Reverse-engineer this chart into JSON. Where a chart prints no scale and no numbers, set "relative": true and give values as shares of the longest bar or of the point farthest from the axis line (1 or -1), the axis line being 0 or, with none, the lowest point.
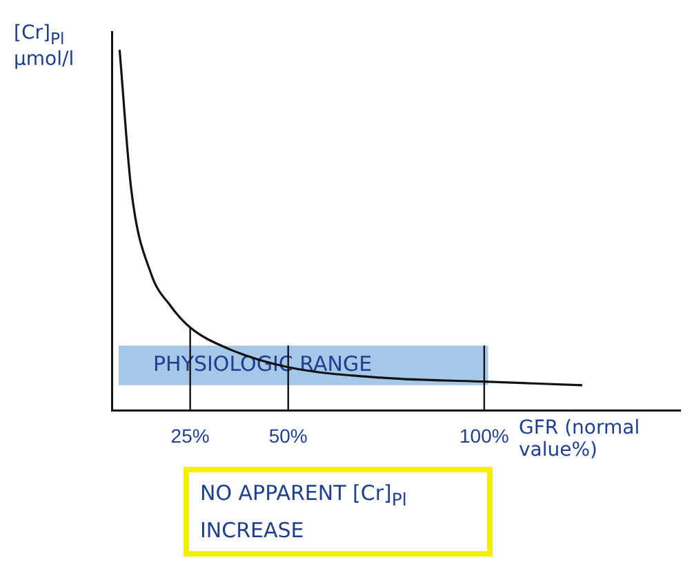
{
  "chart_data": {
    "type": "line",
    "relative": true,
    "xlabel": "GFR (normal value%)",
    "ylabel": "[Cr]$_{Pl}$ µmol/l",
    "x": [
      7,
      10,
      15,
      20,
      25,
      35,
      50,
      75,
      100,
      125
    ],
    "series": [
      {
        "color": "#111111",
        "values": [
          1.0,
          0.61,
          0.38,
          0.29,
          0.23,
          0.17,
          0.12,
          0.09,
          0.08,
          0.07
        ]
      }
    ],
    "xlim": [
      5,
      150
    ],
    "xticks": [
      {
        "value": 25,
        "label": "25%"
      },
      {
        "value": 50,
        "label": "50%"
      },
      {
        "value": 100,
        "label": "100%"
      }
    ],
    "grid": false,
    "marker": "none",
    "line_style": "solid",
    "ref_lines": [
      {
        "axis": "x",
        "value": 25,
        "color": "#111111"
      },
      {
        "axis": "x",
        "value": 50,
        "color": "#111111"
      },
      {
        "axis": "x",
        "value": 100,
        "color": "#111111"
      }
    ],
    "bands": [
      {
        "axis": "y",
        "from": 0.07,
        "to": 0.18,
        "label": "PHYSIOLOGIC RANGE",
        "color": "#5b9bd5"
      }
    ],
    "annotations": [
      "NO APPARENT [Cr]$_{Pl}$ INCREASE"
    ]
  }
}
